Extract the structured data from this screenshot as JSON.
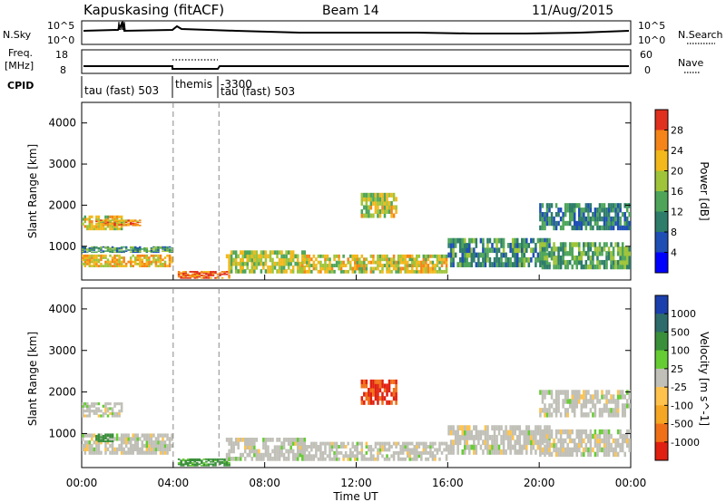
{
  "header": {
    "station": "Kapuskasing (fitACF)",
    "beam": "Beam 14",
    "date": "11/Aug/2015"
  },
  "noise_panel": {
    "left_label": "N.Sky",
    "right_label": "N.Search",
    "left_ticks": [
      "10^5",
      "10^0"
    ],
    "right_ticks": [
      "10^5",
      "10^0"
    ]
  },
  "freq_panel": {
    "left_label_line1": "Freq.",
    "left_label_line2": "[MHz]",
    "right_label": "Nave",
    "left_ticks": [
      "18",
      "8"
    ],
    "right_ticks": [
      "60",
      "0"
    ]
  },
  "cpid": {
    "label": "CPID",
    "segments": [
      {
        "text": "tau (fast) 503",
        "start_hour": 0
      },
      {
        "text": "themis",
        "start_hour": 4
      },
      {
        "text": "-3300",
        "start_hour": 6
      },
      {
        "text": "tau (fast) 503",
        "start_hour": 6
      }
    ]
  },
  "time_axis": {
    "label": "Time UT",
    "ticks": [
      "00:00",
      "04:00",
      "08:00",
      "12:00",
      "16:00",
      "20:00",
      "00:00"
    ],
    "tick_hours": [
      0,
      4,
      8,
      12,
      16,
      20,
      24
    ]
  },
  "range_axis": {
    "label": "Slant Range [km]",
    "ticks": [
      "1000",
      "2000",
      "3000",
      "4000"
    ],
    "tick_values": [
      1000,
      2000,
      3000,
      4000
    ],
    "range": [
      180,
      4500
    ]
  },
  "power_colorbar": {
    "label": "Power [dB]",
    "ticks": [
      "4",
      "8",
      "12",
      "16",
      "20",
      "24",
      "28"
    ],
    "colors": [
      "#0000ff",
      "#1f4fb5",
      "#2e7c6a",
      "#4ea55a",
      "#9fc43a",
      "#f2b81c",
      "#f58519",
      "#e0301e"
    ]
  },
  "velocity_colorbar": {
    "label": "Velocity [m s^-1]",
    "ticks": [
      "1000",
      "500",
      "100",
      "25",
      "-25",
      "-100",
      "-500",
      "-1000"
    ],
    "colors": [
      "#1c3fae",
      "#2e6b6b",
      "#3a8f3a",
      "#66cc33",
      "#c0c0b8",
      "#ffc34d",
      "#f5a623",
      "#f07018",
      "#e02010"
    ]
  },
  "markers": {
    "dashed_hours": [
      4,
      6
    ]
  },
  "chart_data": [
    {
      "type": "heatmap",
      "title": "Power",
      "xlabel": "Time UT",
      "ylabel": "Slant Range [km]",
      "xlim": [
        0,
        24
      ],
      "ylim": [
        180,
        4500
      ],
      "colorbar_label": "Power [dB]",
      "colorbar_range": [
        0,
        30
      ],
      "regions": [
        {
          "t0": 0.0,
          "t1": 4.0,
          "r0": 500,
          "r1": 800,
          "power": 22
        },
        {
          "t0": 0.0,
          "t1": 1.8,
          "r0": 1400,
          "r1": 1750,
          "power": 20
        },
        {
          "t0": 0.0,
          "t1": 4.0,
          "r0": 850,
          "r1": 1000,
          "power": 12
        },
        {
          "t0": 0.6,
          "t1": 2.6,
          "r0": 1500,
          "r1": 1650,
          "power": 24
        },
        {
          "t0": 4.2,
          "t1": 6.5,
          "r0": 220,
          "r1": 400,
          "power": 28
        },
        {
          "t0": 6.3,
          "t1": 9.8,
          "r0": 350,
          "r1": 900,
          "power": 18
        },
        {
          "t0": 9.6,
          "t1": 16.0,
          "r0": 350,
          "r1": 800,
          "power": 20
        },
        {
          "t0": 12.2,
          "t1": 13.8,
          "r0": 1700,
          "r1": 2300,
          "power": 19
        },
        {
          "t0": 16.0,
          "t1": 20.5,
          "r0": 500,
          "r1": 1200,
          "power": 12
        },
        {
          "t0": 20.0,
          "t1": 24.0,
          "r0": 1400,
          "r1": 2050,
          "power": 10
        },
        {
          "t0": 20.0,
          "t1": 24.0,
          "r0": 450,
          "r1": 1100,
          "power": 14
        }
      ]
    },
    {
      "type": "heatmap",
      "title": "Velocity",
      "xlabel": "Time UT",
      "ylabel": "Slant Range [km]",
      "xlim": [
        0,
        24
      ],
      "ylim": [
        180,
        4500
      ],
      "colorbar_label": "Velocity [m s^-1]",
      "regions": [
        {
          "t0": 0.0,
          "t1": 4.0,
          "r0": 500,
          "r1": 1000,
          "velocity": 0
        },
        {
          "t0": 0.0,
          "t1": 1.8,
          "r0": 1400,
          "r1": 1750,
          "velocity": 0
        },
        {
          "t0": 0.6,
          "t1": 1.4,
          "r0": 800,
          "r1": 1000,
          "velocity": 150
        },
        {
          "t0": 4.2,
          "t1": 6.5,
          "r0": 220,
          "r1": 400,
          "velocity": 80
        },
        {
          "t0": 6.3,
          "t1": 9.8,
          "r0": 350,
          "r1": 900,
          "velocity": 0
        },
        {
          "t0": 9.6,
          "t1": 16.0,
          "r0": 350,
          "r1": 800,
          "velocity": 0
        },
        {
          "t0": 12.2,
          "t1": 13.8,
          "r0": 1700,
          "r1": 2300,
          "velocity": -800
        },
        {
          "t0": 16.0,
          "t1": 20.5,
          "r0": 500,
          "r1": 1200,
          "velocity": 0
        },
        {
          "t0": 20.0,
          "t1": 24.0,
          "r0": 1400,
          "r1": 2050,
          "velocity": 0
        },
        {
          "t0": 20.0,
          "t1": 24.0,
          "r0": 450,
          "r1": 1100,
          "velocity": 0
        }
      ]
    }
  ]
}
